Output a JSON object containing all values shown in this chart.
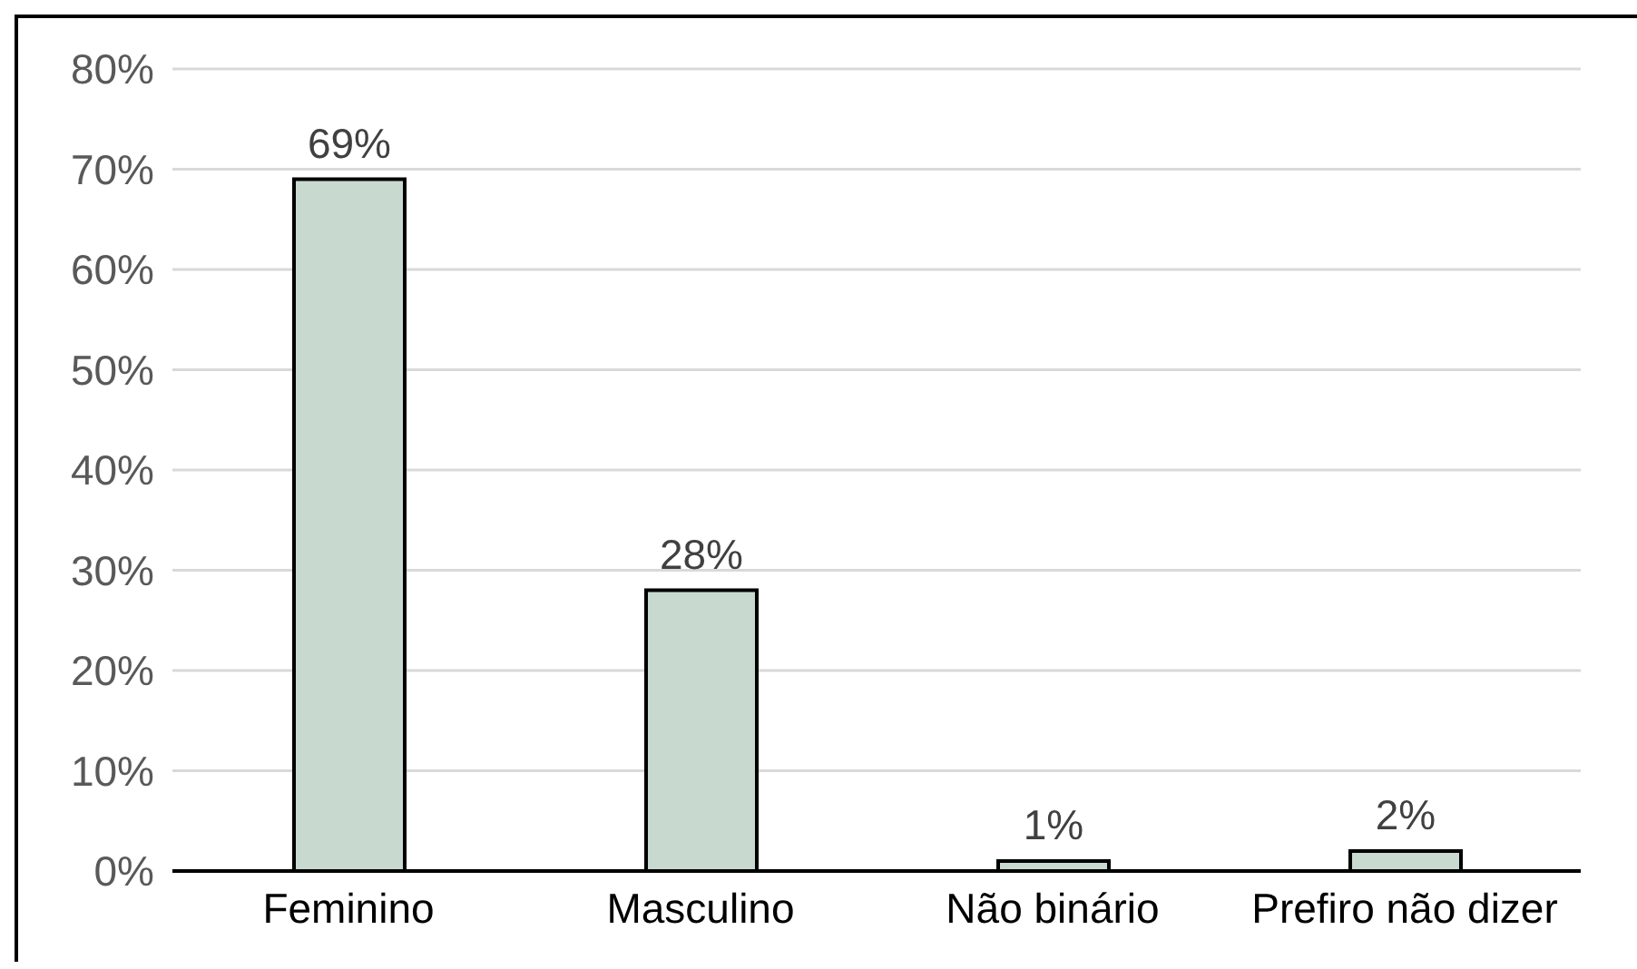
{
  "chart_data": {
    "type": "bar",
    "categories": [
      "Feminino",
      "Masculino",
      "Não binário",
      "Prefiro não dizer"
    ],
    "values": [
      69,
      28,
      1,
      2
    ],
    "color": "#c8d9d0",
    "value_labels": [
      "69%",
      "28%",
      "1%",
      "2%"
    ],
    "ylim": [
      0,
      80
    ],
    "yticks": [
      {
        "value": 0,
        "label": "0%"
      },
      {
        "value": 10,
        "label": "10%"
      },
      {
        "value": 20,
        "label": "20%"
      },
      {
        "value": 30,
        "label": "30%"
      },
      {
        "value": 40,
        "label": "40%"
      },
      {
        "value": 50,
        "label": "50%"
      },
      {
        "value": 60,
        "label": "60%"
      },
      {
        "value": 70,
        "label": "70%"
      },
      {
        "value": 80,
        "label": "80%"
      }
    ],
    "grid": "y"
  }
}
